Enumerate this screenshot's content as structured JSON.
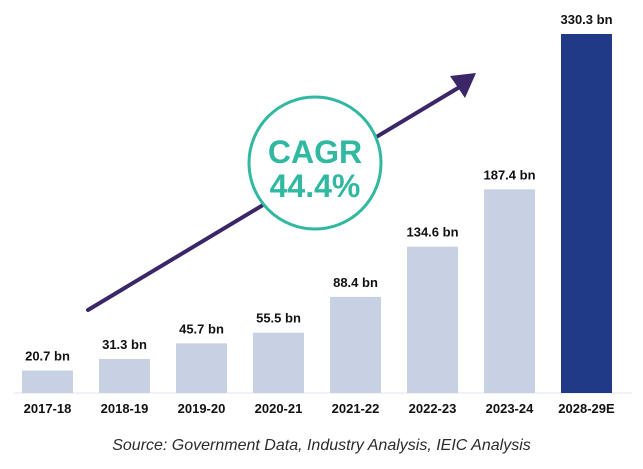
{
  "source": "Source: Government Data, Industry Analysis, IEIC Analysis",
  "cagr": {
    "label": "CAGR",
    "value": "44.4%"
  },
  "colors": {
    "bar": "#c8d0e4",
    "highlight": "#213a87",
    "accent": "#31b8a0",
    "arrow": "#3b2767",
    "text": "#111111"
  },
  "chart_data": {
    "type": "bar",
    "categories": [
      "2017-18",
      "2018-19",
      "2019-20",
      "2020-21",
      "2021-22",
      "2022-23",
      "2023-24",
      "2028-29E"
    ],
    "values": [
      20.7,
      31.3,
      45.7,
      55.5,
      88.4,
      134.6,
      187.4,
      330.3
    ],
    "data_labels": [
      "20.7 bn",
      "31.3 bn",
      "45.7 bn",
      "55.5 bn",
      "88.4 bn",
      "134.6 bn",
      "187.4 bn",
      "330.3 bn"
    ],
    "highlight_index": 7,
    "ylim": [
      0,
      330.3
    ],
    "grid": false
  }
}
